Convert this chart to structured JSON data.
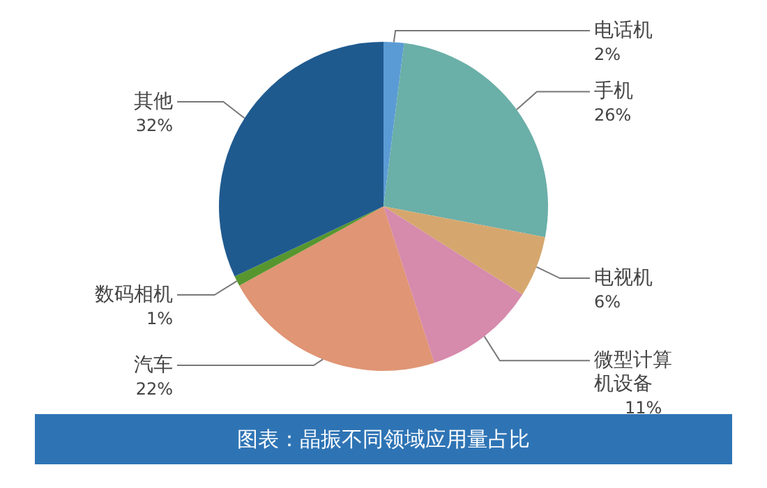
{
  "chart_data": {
    "type": "pie",
    "title": "图表：晶振不同领域应用量占比",
    "categories": [
      "电话机",
      "手机",
      "电视机",
      "微型计算机设备",
      "汽车",
      "数码相机",
      "其他"
    ],
    "values": [
      2,
      26,
      6,
      11,
      22,
      1,
      32
    ],
    "colors": [
      "#5b9bd5",
      "#6aafa8",
      "#d5a76e",
      "#d68aac",
      "#e09574",
      "#57962f",
      "#1f5a8f"
    ],
    "value_labels": [
      "2%",
      "26%",
      "6%",
      "11%",
      "22%",
      "1%",
      "32%"
    ]
  }
}
